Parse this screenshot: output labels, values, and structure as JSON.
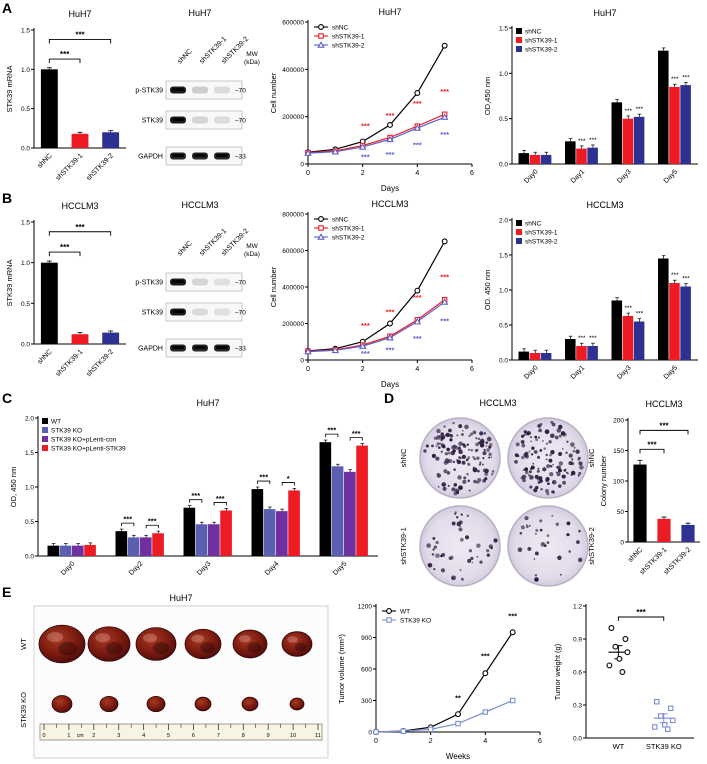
{
  "panel_labels": {
    "A": "A",
    "B": "B",
    "C": "C",
    "D": "D",
    "E": "E"
  },
  "chart_data": [
    {
      "id": "a_mrna",
      "type": "bar",
      "title": "HuH7",
      "ylabel": "STK39 mRNA",
      "ylim": [
        0,
        1.5
      ],
      "yticks": [
        0,
        0.5,
        1.0,
        1.5
      ],
      "ytick_labels": [
        "0.0",
        "0.5",
        "1.0",
        "1.5"
      ],
      "categories": [
        "shNC",
        "shSTK39-1",
        "shSTK39-2"
      ],
      "values": [
        1.0,
        0.18,
        0.2
      ],
      "errors": [
        0.02,
        0.02,
        0.02
      ],
      "colors": [
        "#000000",
        "#ed1c24",
        "#2e3192"
      ],
      "brackets": [
        {
          "from": 0,
          "to": 1,
          "label": "***",
          "y": 1.13
        },
        {
          "from": 0,
          "to": 2,
          "label": "***",
          "y": 1.38
        }
      ]
    },
    {
      "id": "a_blot",
      "type": "blot",
      "title": "HuH7",
      "mw_header": [
        "MW",
        "(kDa)"
      ],
      "lanes": [
        "shNC",
        "shSTK39-1",
        "shSTK39-2"
      ],
      "rows": [
        {
          "label": "p-STK39",
          "mw": "70",
          "bands": [
            0.95,
            0.18,
            0.12
          ]
        },
        {
          "label": "STK39",
          "mw": "70",
          "bands": [
            0.95,
            0.15,
            0.12
          ]
        },
        {
          "label": "GAPDH",
          "mw": "33",
          "bands": [
            0.9,
            0.9,
            0.9
          ]
        }
      ]
    },
    {
      "id": "a_growth",
      "type": "line",
      "title": "HuH7",
      "ylabel": "Cell number",
      "xlabel": "Days",
      "ylim": [
        0,
        600000
      ],
      "yticks": [
        0,
        200000,
        400000,
        600000
      ],
      "ytick_labels": [
        "0",
        "200000",
        "400000",
        "600000"
      ],
      "xlim": [
        0,
        6
      ],
      "xticks": [
        0,
        2,
        4,
        6
      ],
      "x": [
        0,
        1,
        2,
        3,
        4,
        5
      ],
      "series": [
        {
          "name": "shNC",
          "color": "#000000",
          "marker": "circle",
          "values": [
            50000,
            62000,
            95000,
            165000,
            300000,
            500000
          ]
        },
        {
          "name": "shSTK39-1",
          "color": "#ed1c24",
          "marker": "square",
          "values": [
            48000,
            55000,
            78000,
            112000,
            160000,
            210000
          ]
        },
        {
          "name": "shSTK39-2",
          "color": "#5a62c9",
          "marker": "triangle",
          "values": [
            46000,
            52000,
            72000,
            104000,
            152000,
            198000
          ]
        }
      ],
      "annotations": [
        {
          "x": 2.1,
          "y": 150000,
          "label": "***",
          "color": "#ed1c24"
        },
        {
          "x": 3,
          "y": 195000,
          "label": "***",
          "color": "#ed1c24"
        },
        {
          "x": 4,
          "y": 245000,
          "label": "***",
          "color": "#ed1c24"
        },
        {
          "x": 5,
          "y": 295000,
          "label": "***",
          "color": "#ed1c24"
        },
        {
          "x": 2.1,
          "y": 18000,
          "label": "***",
          "color": "#5a62c9"
        },
        {
          "x": 3,
          "y": 30000,
          "label": "***",
          "color": "#5a62c9"
        },
        {
          "x": 4,
          "y": 70000,
          "label": "***",
          "color": "#5a62c9"
        },
        {
          "x": 5,
          "y": 115000,
          "label": "***",
          "color": "#5a62c9"
        }
      ],
      "legend": true
    },
    {
      "id": "a_cck8",
      "type": "grouped_bar",
      "title": "HuH7",
      "ylabel": "OD,450 nm",
      "ylim": [
        0,
        1.5
      ],
      "yticks": [
        0,
        0.5,
        1.0,
        1.5
      ],
      "ytick_labels": [
        "0.0",
        "0.5",
        "1.0",
        "1.5"
      ],
      "categories": [
        "Day0",
        "Day1",
        "Day3",
        "Day5"
      ],
      "err": 0.03,
      "series": [
        {
          "name": "shNC",
          "color": "#000000",
          "values": [
            0.12,
            0.25,
            0.68,
            1.25
          ]
        },
        {
          "name": "shSTK39-1",
          "color": "#ed1c24",
          "values": [
            0.1,
            0.17,
            0.5,
            0.85
          ]
        },
        {
          "name": "shSTK39-2",
          "color": "#2e3192",
          "values": [
            0.1,
            0.18,
            0.52,
            0.87
          ]
        }
      ],
      "stars": [
        {
          "g": 1,
          "s": 1,
          "label": "***"
        },
        {
          "g": 1,
          "s": 2,
          "label": "***"
        },
        {
          "g": 2,
          "s": 1,
          "label": "***"
        },
        {
          "g": 2,
          "s": 2,
          "label": "***"
        },
        {
          "g": 3,
          "s": 1,
          "label": "***"
        },
        {
          "g": 3,
          "s": 2,
          "label": "***"
        }
      ],
      "legend": {
        "dy": 0
      }
    },
    {
      "id": "b_mrna",
      "type": "bar",
      "title": "HCCLM3",
      "ylabel": "STK39 mRNA",
      "ylim": [
        0,
        1.5
      ],
      "yticks": [
        0,
        0.5,
        1.0,
        1.5
      ],
      "ytick_labels": [
        "0.0",
        "0.5",
        "1.0",
        "1.5"
      ],
      "categories": [
        "shNC",
        "shSTK39-1",
        "shSTK39-2"
      ],
      "values": [
        1.0,
        0.12,
        0.14
      ],
      "errors": [
        0.02,
        0.02,
        0.02
      ],
      "colors": [
        "#000000",
        "#ed1c24",
        "#2e3192"
      ],
      "brackets": [
        {
          "from": 0,
          "to": 1,
          "label": "***",
          "y": 1.13
        },
        {
          "from": 0,
          "to": 2,
          "label": "***",
          "y": 1.38
        }
      ]
    },
    {
      "id": "b_blot",
      "type": "blot",
      "title": "HCCLM3",
      "mw_header": [
        "MW",
        "(kDa)"
      ],
      "lanes": [
        "shNC",
        "shSTK39-1",
        "shSTK39-2"
      ],
      "rows": [
        {
          "label": "p-STK39",
          "mw": "70",
          "bands": [
            0.95,
            0.15,
            0.1
          ]
        },
        {
          "label": "STK39",
          "mw": "70",
          "bands": [
            0.95,
            0.12,
            0.1
          ]
        },
        {
          "label": "GAPDH",
          "mw": "33",
          "bands": [
            0.9,
            0.9,
            0.9
          ]
        }
      ]
    },
    {
      "id": "b_growth",
      "type": "line",
      "title": "HCCLM3",
      "ylabel": "Cell number",
      "xlabel": "Days",
      "ylim": [
        0,
        800000
      ],
      "yticks": [
        0,
        200000,
        400000,
        600000,
        800000
      ],
      "ytick_labels": [
        "0",
        "200000",
        "400000",
        "600000",
        "800000"
      ],
      "xlim": [
        0,
        6
      ],
      "xticks": [
        0,
        2,
        4,
        6
      ],
      "x": [
        0,
        1,
        2,
        3,
        4,
        5
      ],
      "series": [
        {
          "name": "shNC",
          "color": "#000000",
          "marker": "circle",
          "values": [
            50000,
            62000,
            100000,
            200000,
            380000,
            650000
          ]
        },
        {
          "name": "shSTK39-1",
          "color": "#ed1c24",
          "marker": "square",
          "values": [
            48000,
            56000,
            82000,
            130000,
            220000,
            330000
          ]
        },
        {
          "name": "shSTK39-2",
          "color": "#5a62c9",
          "marker": "triangle",
          "values": [
            46000,
            53000,
            76000,
            122000,
            210000,
            318000
          ]
        }
      ],
      "annotations": [
        {
          "x": 2.1,
          "y": 175000,
          "label": "***",
          "color": "#ed1c24"
        },
        {
          "x": 3,
          "y": 250000,
          "label": "***",
          "color": "#ed1c24"
        },
        {
          "x": 4,
          "y": 330000,
          "label": "***",
          "color": "#ed1c24"
        },
        {
          "x": 5,
          "y": 440000,
          "label": "***",
          "color": "#ed1c24"
        },
        {
          "x": 2.1,
          "y": 22000,
          "label": "***",
          "color": "#5a62c9"
        },
        {
          "x": 3,
          "y": 42000,
          "label": "***",
          "color": "#5a62c9"
        },
        {
          "x": 4,
          "y": 105000,
          "label": "***",
          "color": "#5a62c9"
        },
        {
          "x": 5,
          "y": 200000,
          "label": "***",
          "color": "#5a62c9"
        }
      ],
      "legend": true
    },
    {
      "id": "b_cck8",
      "type": "grouped_bar",
      "title": "HCCLM3",
      "ylabel": "OD. 450 nm",
      "ylim": [
        0,
        2.0
      ],
      "yticks": [
        0,
        0.5,
        1.0,
        1.5,
        2.0
      ],
      "ytick_labels": [
        "0.0",
        "0.5",
        "1.0",
        "1.5",
        "2.0"
      ],
      "categories": [
        "Day0",
        "Day1",
        "Day3",
        "Day5"
      ],
      "err": 0.04,
      "series": [
        {
          "name": "shNC",
          "color": "#000000",
          "values": [
            0.12,
            0.3,
            0.85,
            1.45
          ]
        },
        {
          "name": "shSTK39-1",
          "color": "#ed1c24",
          "values": [
            0.1,
            0.2,
            0.63,
            1.1
          ]
        },
        {
          "name": "shSTK39-2",
          "color": "#2e3192",
          "values": [
            0.1,
            0.2,
            0.55,
            1.05
          ]
        }
      ],
      "stars": [
        {
          "g": 1,
          "s": 1,
          "label": "***"
        },
        {
          "g": 1,
          "s": 2,
          "label": "***"
        },
        {
          "g": 2,
          "s": 1,
          "label": "***"
        },
        {
          "g": 2,
          "s": 2,
          "label": "***"
        },
        {
          "g": 3,
          "s": 1,
          "label": "***"
        },
        {
          "g": 3,
          "s": 2,
          "label": "***"
        }
      ],
      "legend": {
        "dy": 0
      }
    },
    {
      "id": "c_cck8",
      "type": "grouped_bar",
      "title": "HuH7",
      "ylabel": "OD, 450 nm",
      "ylim": [
        0,
        2.0
      ],
      "yticks": [
        0,
        0.5,
        1.0,
        1.5,
        2.0
      ],
      "ytick_labels": [
        "0.0",
        "0.5",
        "1.0",
        "1.5",
        "2.0"
      ],
      "categories": [
        "Day0",
        "Day2",
        "Day3",
        "Day4",
        "Day5"
      ],
      "err": 0.03,
      "series": [
        {
          "name": "WT",
          "color": "#000000",
          "values": [
            0.15,
            0.36,
            0.7,
            0.97,
            1.65
          ]
        },
        {
          "name": "STK39 KO",
          "color": "#5a5fb0",
          "values": [
            0.15,
            0.27,
            0.46,
            0.68,
            1.3
          ]
        },
        {
          "name": "STK39 KO+pLenti-con",
          "color": "#7030a0",
          "values": [
            0.15,
            0.27,
            0.46,
            0.65,
            1.22
          ]
        },
        {
          "name": "STK39 KO+pLenti-STK39",
          "color": "#ed1c24",
          "values": [
            0.16,
            0.33,
            0.66,
            0.95,
            1.6
          ]
        }
      ],
      "brackets": [
        {
          "g": 1,
          "s1": 0,
          "s2": 1,
          "label": "***"
        },
        {
          "g": 1,
          "s1": 2,
          "s2": 3,
          "label": "***"
        },
        {
          "g": 2,
          "s1": 0,
          "s2": 1,
          "label": "***"
        },
        {
          "g": 2,
          "s1": 2,
          "s2": 3,
          "label": "***"
        },
        {
          "g": 3,
          "s1": 0,
          "s2": 1,
          "label": "***"
        },
        {
          "g": 3,
          "s1": 2,
          "s2": 3,
          "label": "*"
        },
        {
          "g": 4,
          "s1": 0,
          "s2": 1,
          "label": "***"
        },
        {
          "g": 4,
          "s1": 2,
          "s2": 3,
          "label": "***"
        }
      ],
      "legend": {
        "dy": 0
      }
    },
    {
      "id": "d_wells",
      "type": "wells",
      "title": "HCCLM3",
      "left_labels": [
        "shNC",
        "shSTK39-1"
      ],
      "right_labels": [
        "shNC",
        "shSTK39-2"
      ],
      "counts": [
        [
          135,
          125
        ],
        [
          42,
          30
        ]
      ],
      "well_color": "#e6e0ec",
      "dot_color": "#2b1b3d"
    },
    {
      "id": "d_colony",
      "type": "bar",
      "title": "HCCLM3",
      "ylabel": "Colony number",
      "ylim": [
        0,
        200
      ],
      "yticks": [
        0,
        50,
        100,
        150,
        200
      ],
      "ytick_labels": [
        "0",
        "50",
        "100",
        "150",
        "200"
      ],
      "categories": [
        "shNC",
        "shSTK39-1",
        "shSTK39-2"
      ],
      "values": [
        127,
        38,
        28
      ],
      "errors": [
        7,
        3,
        3
      ],
      "colors": [
        "#000000",
        "#ed1c24",
        "#2e3192"
      ],
      "brackets": [
        {
          "from": 0,
          "to": 1,
          "label": "***",
          "y": 152
        },
        {
          "from": 0,
          "to": 2,
          "label": "***",
          "y": 183
        }
      ]
    },
    {
      "id": "e_tumors",
      "type": "tumors",
      "title": "HuH7",
      "row_labels": [
        "WT",
        "STK39 KO"
      ],
      "top_sizes": [
        23,
        21,
        20,
        18,
        17,
        15
      ],
      "bottom_sizes": [
        10,
        9,
        9,
        8,
        8,
        7
      ],
      "ruler_numbers": [
        "0",
        "1",
        "2",
        "3",
        "4",
        "5",
        "6",
        "7",
        "8",
        "9",
        "10",
        "11"
      ],
      "ruler_unit": "cm"
    },
    {
      "id": "e_volume",
      "type": "line",
      "title": "",
      "ylabel": "Tumor volume (mm³)",
      "xlabel": "Weeks",
      "ylim": [
        0,
        1200
      ],
      "yticks": [
        0,
        300,
        600,
        900,
        1200
      ],
      "ytick_labels": [
        "0",
        "300",
        "600",
        "900",
        "1200"
      ],
      "xlim": [
        0,
        6
      ],
      "xticks": [
        0,
        2,
        4,
        6
      ],
      "x": [
        0,
        1,
        2,
        3,
        4,
        5
      ],
      "series": [
        {
          "name": "WT",
          "color": "#000000",
          "marker": "circle",
          "values": [
            0,
            10,
            45,
            170,
            560,
            950
          ]
        },
        {
          "name": "STK39 KO",
          "color": "#7d8fd4",
          "marker": "square",
          "values": [
            0,
            8,
            25,
            80,
            190,
            300
          ]
        }
      ],
      "annotations": [
        {
          "x": 3,
          "y": 300,
          "label": "**",
          "color": "#000000"
        },
        {
          "x": 4,
          "y": 700,
          "label": "***",
          "color": "#000000"
        },
        {
          "x": 5,
          "y": 1080,
          "label": "***",
          "color": "#000000"
        }
      ],
      "legend": true
    },
    {
      "id": "e_weight",
      "type": "scatter",
      "ylabel": "Tumor weight (g)",
      "ylim": [
        0,
        1.2
      ],
      "yticks": [
        0,
        0.3,
        0.6,
        0.9,
        1.2
      ],
      "ytick_labels": [
        "0.0",
        "0.3",
        "0.6",
        "0.9",
        "1.2"
      ],
      "groups": [
        {
          "name": "WT",
          "color": "#000000",
          "marker": "circle",
          "points": [
            1.0,
            0.9,
            0.83,
            0.78,
            0.72,
            0.66,
            0.6
          ],
          "mean": 0.78,
          "sem": 0.06
        },
        {
          "name": "STK39 KO",
          "color": "#7d8fd4",
          "marker": "square",
          "points": [
            0.33,
            0.27,
            0.2,
            0.16,
            0.12,
            0.1,
            0.08
          ],
          "mean": 0.18,
          "sem": 0.04
        }
      ],
      "bracket": {
        "label": "***",
        "y": 1.1
      }
    }
  ]
}
